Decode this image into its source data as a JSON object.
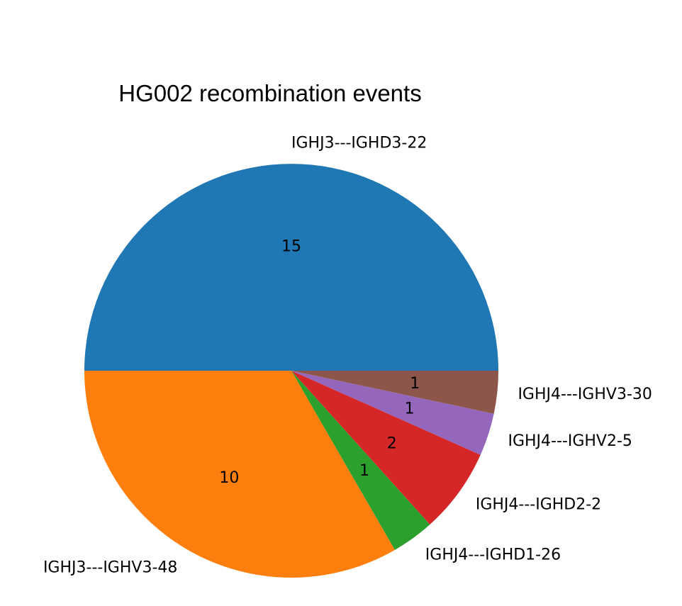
{
  "chart_data": {
    "type": "pie",
    "title": "HG002 recombination events",
    "categories": [
      "IGHJ3---IGHD3-22",
      "IGHJ3---IGHV3-48",
      "IGHJ4---IGHD1-26",
      "IGHJ4---IGHD2-2",
      "IGHJ4---IGHV2-5",
      "IGHJ4---IGHV3-30"
    ],
    "values": [
      15,
      10,
      1,
      2,
      1,
      1
    ],
    "value_labels": [
      "15",
      "10",
      "1",
      "2",
      "1",
      "1"
    ],
    "colors": [
      "#1f77b4",
      "#ff7f0e",
      "#2ca02c",
      "#d62728",
      "#9467bd",
      "#8c564b"
    ],
    "start_angle_deg": 0,
    "direction": "counterclockwise",
    "legend": "none"
  }
}
